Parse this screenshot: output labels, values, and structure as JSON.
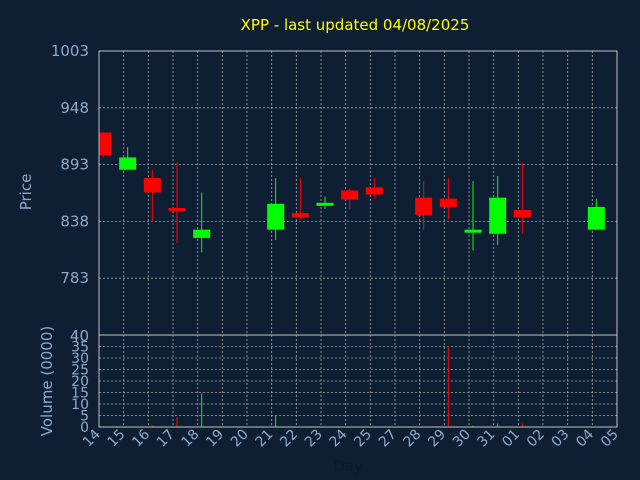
{
  "chart_data": {
    "type": "candlestick",
    "title": "XPP - last updated 04/08/2025",
    "price_label": "Price",
    "volume_label": "Volume (0000)",
    "xlabel": "Day",
    "price_ticks": [
      "1003",
      "948",
      "893",
      "838",
      "783"
    ],
    "price_ylim": [
      728,
      1003
    ],
    "volume_ticks": [
      "40",
      "35",
      "30",
      "25",
      "20",
      "15",
      "10",
      "5",
      "0"
    ],
    "volume_ylim": [
      0,
      40
    ],
    "grid": true,
    "colors": {
      "background": "#0f1f33",
      "up": "#00ff00",
      "down": "#ff0000",
      "text": "#8fa9c6",
      "title": "#ffff00",
      "grid": "#c0c0c0"
    },
    "x_labels": [
      "14",
      "15",
      "16",
      "17",
      "18",
      "19",
      "20",
      "21",
      "22",
      "23",
      "24",
      "25",
      "27",
      "28",
      "29",
      "30",
      "31",
      "01",
      "02",
      "03",
      "04",
      "05"
    ],
    "candles": [
      {
        "x": 0,
        "open": 924,
        "high": 924,
        "low": 900,
        "close": 902,
        "volume": 0
      },
      {
        "x": 1,
        "open": 888,
        "high": 910,
        "low": 888,
        "close": 900,
        "volume": 0
      },
      {
        "x": 2,
        "open": 880,
        "high": 888,
        "low": 838,
        "close": 866,
        "volume": 0.5
      },
      {
        "x": 3,
        "open": 851,
        "high": 895,
        "low": 817,
        "close": 848,
        "volume": 4.5
      },
      {
        "x": 4,
        "open": 822,
        "high": 866,
        "low": 808,
        "close": 830,
        "volume": 14.5
      },
      {
        "x": 7,
        "open": 830,
        "high": 880,
        "low": 820,
        "close": 855,
        "volume": 5
      },
      {
        "x": 8,
        "open": 846,
        "high": 880,
        "low": 840,
        "close": 842,
        "volume": 0
      },
      {
        "x": 9,
        "open": 855,
        "high": 862,
        "low": 850,
        "close": 856,
        "volume": 0
      },
      {
        "x": 10,
        "open": 868,
        "high": 870,
        "low": 850,
        "close": 859,
        "volume": 0
      },
      {
        "x": 11,
        "open": 871,
        "high": 880,
        "low": 860,
        "close": 864,
        "volume": 0
      },
      {
        "x": 13,
        "open": 861,
        "high": 877,
        "low": 830,
        "close": 844,
        "volume": 0
      },
      {
        "x": 14,
        "open": 860,
        "high": 880,
        "low": 840,
        "close": 852,
        "volume": 35
      },
      {
        "x": 15,
        "open": 829,
        "high": 877,
        "low": 810,
        "close": 830,
        "volume": 0.5
      },
      {
        "x": 16,
        "open": 826,
        "high": 882,
        "low": 815,
        "close": 861,
        "volume": 1.5
      },
      {
        "x": 17,
        "open": 849,
        "high": 895,
        "low": 826,
        "close": 842,
        "volume": 1.5
      },
      {
        "x": 20,
        "open": 830,
        "high": 860,
        "low": 830,
        "close": 852,
        "volume": 0
      }
    ]
  }
}
